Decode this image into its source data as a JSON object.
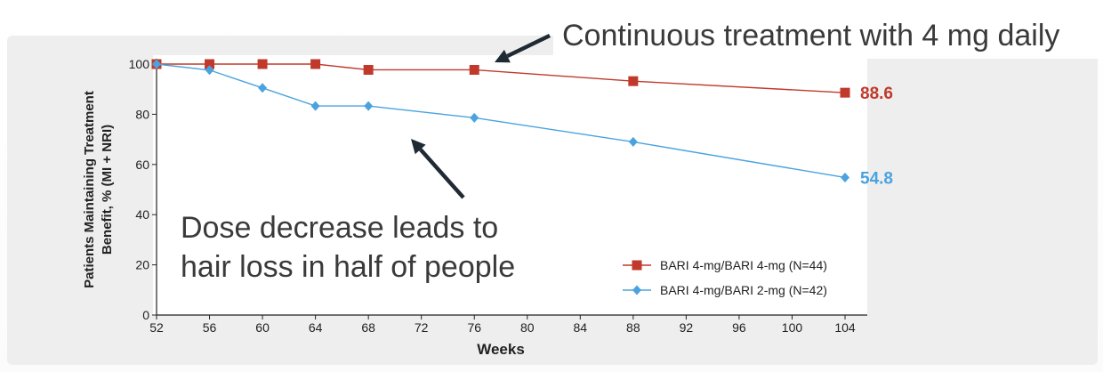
{
  "callouts": {
    "top": "Continuous treatment with 4 mg daily",
    "bottom_line1": "Dose decrease leads to",
    "bottom_line2": "hair loss in half of people"
  },
  "chart_data": {
    "type": "line",
    "ylabel_line1": "Patients Maintaining Treatment",
    "ylabel_line2": "Benefit, % (MI + NRI)",
    "xlabel": "Weeks",
    "xlim": [
      52,
      104
    ],
    "ylim": [
      0,
      100
    ],
    "xticks": [
      52,
      56,
      60,
      64,
      68,
      72,
      76,
      80,
      84,
      88,
      92,
      96,
      100,
      104
    ],
    "yticks": [
      0,
      20,
      40,
      60,
      80,
      100
    ],
    "grid": false,
    "legend_position": "bottom-right",
    "series": [
      {
        "name": "BARI 4-mg/BARI 4-mg (N=44)",
        "color": "#c0392b",
        "marker": "square",
        "x": [
          52,
          56,
          60,
          64,
          68,
          76,
          88,
          104
        ],
        "y": [
          100,
          100,
          100,
          100,
          97.7,
          97.7,
          93.2,
          88.6
        ],
        "end_label": "88.6"
      },
      {
        "name": "BARI 4-mg/BARI 2-mg (N=42)",
        "color": "#4aa3df",
        "marker": "diamond",
        "x": [
          52,
          56,
          60,
          64,
          68,
          76,
          88,
          104
        ],
        "y": [
          100,
          97.6,
          90.5,
          83.3,
          83.3,
          78.6,
          69.0,
          54.8
        ],
        "end_label": "54.8"
      }
    ]
  }
}
